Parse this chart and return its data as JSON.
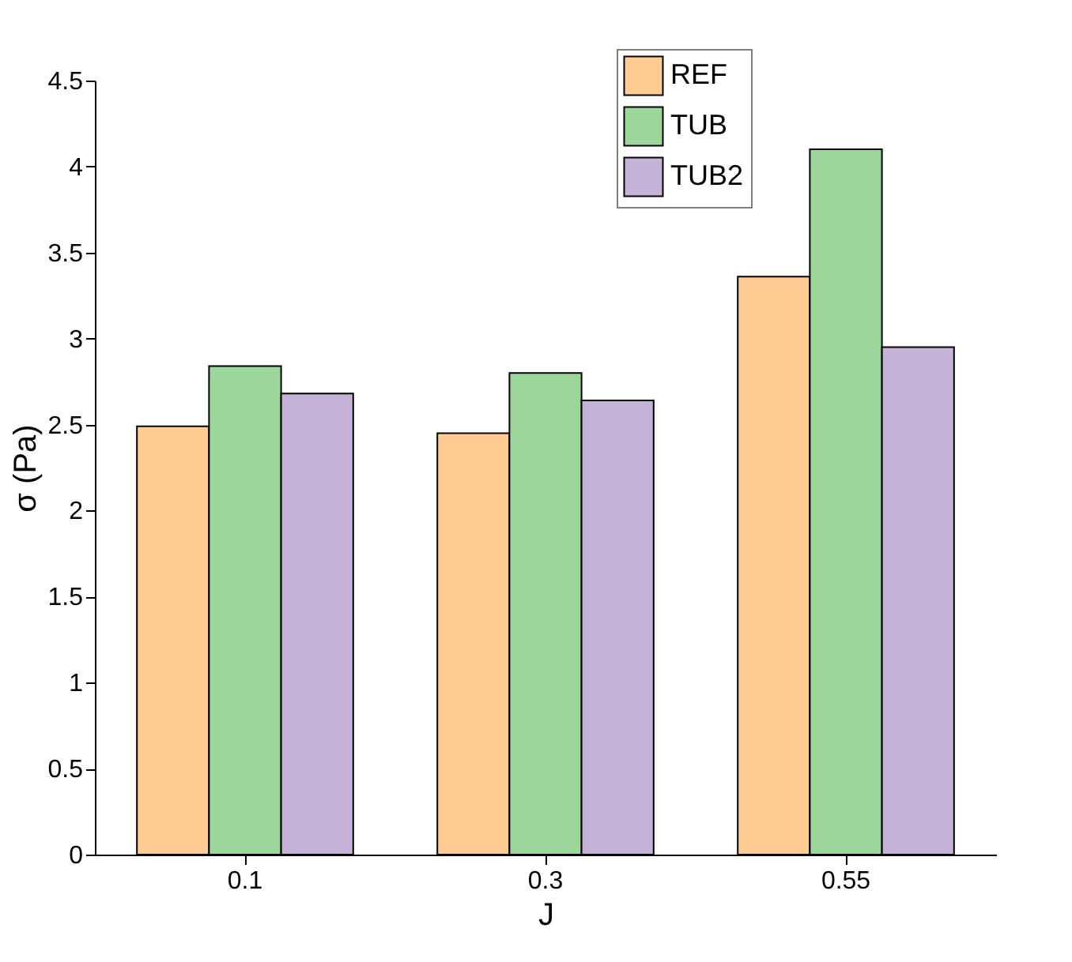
{
  "chart_data": {
    "type": "bar",
    "xlabel": "J",
    "ylabel": "σ (Pa)",
    "categories": [
      "0.1",
      "0.3",
      "0.55"
    ],
    "series": [
      {
        "name": "REF",
        "color": "#fecb92",
        "values": [
          2.49,
          2.45,
          3.36
        ]
      },
      {
        "name": "TUB",
        "color": "#9dd69b",
        "values": [
          2.84,
          2.8,
          4.1
        ]
      },
      {
        "name": "TUB2",
        "color": "#c5b3d7",
        "values": [
          2.68,
          2.64,
          2.95
        ]
      }
    ],
    "ylim": [
      0,
      4.5
    ],
    "yticks": [
      0,
      0.5,
      1,
      1.5,
      2,
      2.5,
      3,
      3.5,
      4,
      4.5
    ],
    "grid": false,
    "legend": "top right"
  }
}
